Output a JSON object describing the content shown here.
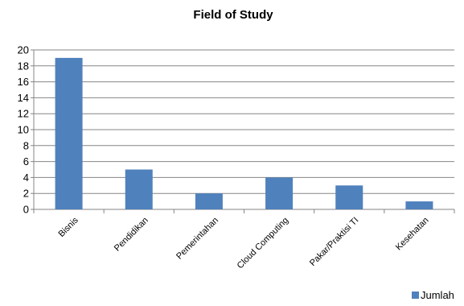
{
  "chart_data": {
    "type": "bar",
    "title": "Field of Study",
    "categories": [
      "Bisnis",
      "Pendidikan",
      "Pemerintahan",
      "Cloud Computing",
      "Pakar/Praktisi TI",
      "Kesehatan"
    ],
    "series": [
      {
        "name": "Jumlah",
        "values": [
          19,
          5,
          2,
          4,
          3,
          1
        ],
        "color": "#4F81BD"
      }
    ],
    "ylim": [
      0,
      20
    ],
    "yticks": [
      0,
      2,
      4,
      6,
      8,
      10,
      12,
      14,
      16,
      18,
      20
    ],
    "grid": true,
    "legend_position": "bottom-right"
  }
}
